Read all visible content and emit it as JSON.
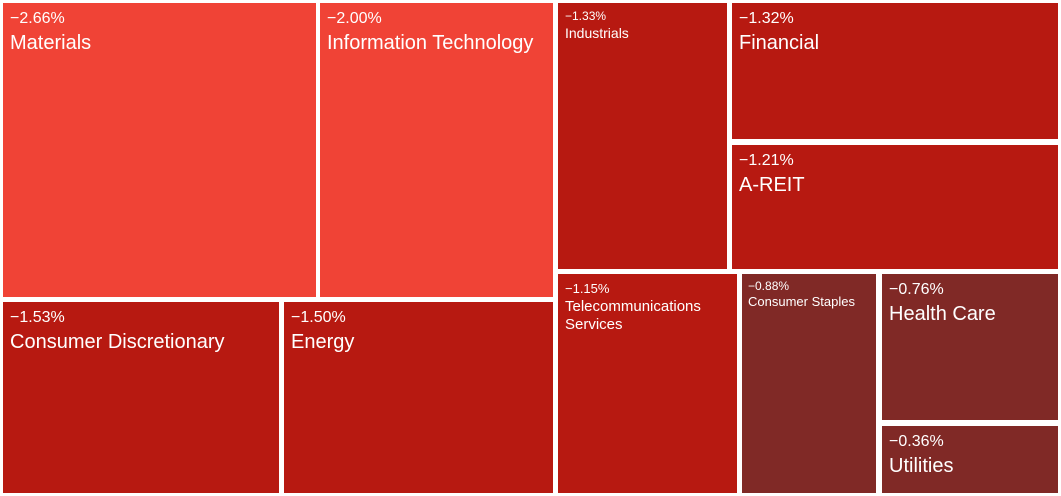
{
  "chart_data": {
    "type": "treemap",
    "title": "",
    "colors": {
      "bright": "#f04336",
      "mid": "#b71911",
      "dark": "#802926",
      "border": "#ffffff"
    },
    "tiles": [
      {
        "name": "Materials",
        "change": "−2.66%",
        "value": -2.66,
        "color": "#f04336",
        "size": "lg"
      },
      {
        "name": "Information Technology",
        "change": "−2.00%",
        "value": -2.0,
        "color": "#f04336",
        "size": "lg"
      },
      {
        "name": "Industrials",
        "change": "−1.33%",
        "value": -1.33,
        "color": "#b71911",
        "size": "sm"
      },
      {
        "name": "Financial",
        "change": "−1.32%",
        "value": -1.32,
        "color": "#b71911",
        "size": "lg"
      },
      {
        "name": "A-REIT",
        "change": "−1.21%",
        "value": -1.21,
        "color": "#b71911",
        "size": "lg"
      },
      {
        "name": "Consumer Discretionary",
        "change": "−1.53%",
        "value": -1.53,
        "color": "#b71911",
        "size": "lg"
      },
      {
        "name": "Energy",
        "change": "−1.50%",
        "value": -1.5,
        "color": "#b71911",
        "size": "lg"
      },
      {
        "name": "Telecommunications Services",
        "change": "−1.15%",
        "value": -1.15,
        "color": "#b71911",
        "size": "md"
      },
      {
        "name": "Consumer Staples",
        "change": "−0.88%",
        "value": -0.88,
        "color": "#802926",
        "size": "xs"
      },
      {
        "name": "Health Care",
        "change": "−0.76%",
        "value": -0.76,
        "color": "#802926",
        "size": "lg"
      },
      {
        "name": "Utilities",
        "change": "−0.36%",
        "value": -0.36,
        "color": "#802926",
        "size": "lg"
      }
    ]
  }
}
